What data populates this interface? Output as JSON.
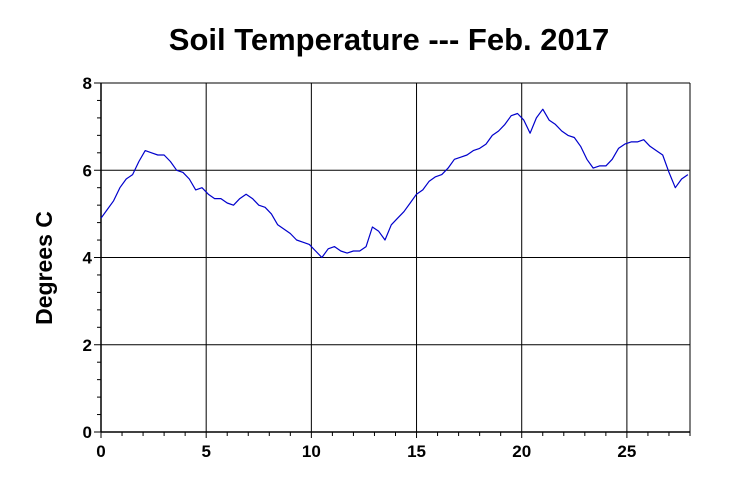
{
  "chart_data": {
    "type": "line",
    "title": "Soil Temperature --- Feb. 2017",
    "xlabel": "",
    "ylabel": "Degrees C",
    "xlim": [
      0,
      28
    ],
    "ylim": [
      0,
      8
    ],
    "x_ticks": [
      "0",
      "5",
      "10",
      "15",
      "20",
      "25"
    ],
    "y_ticks": [
      "0",
      "2",
      "4",
      "6",
      "8"
    ],
    "grid": true,
    "line_color": "#0000cc",
    "series": [
      {
        "x": [
          0,
          0.3,
          0.6,
          0.9,
          1.2,
          1.5,
          1.8,
          2.1,
          2.4,
          2.7,
          3.0,
          3.3,
          3.6,
          3.9,
          4.2,
          4.5,
          4.8,
          5.1,
          5.4,
          5.7,
          6.0,
          6.3,
          6.6,
          6.9,
          7.2,
          7.5,
          7.8,
          8.1,
          8.4,
          8.7,
          9.0,
          9.3,
          9.6,
          9.9,
          10.2,
          10.5,
          10.8,
          11.1,
          11.4,
          11.7,
          12.0,
          12.3,
          12.6,
          12.9,
          13.2,
          13.5,
          13.8,
          14.1,
          14.4,
          14.7,
          15.0,
          15.3,
          15.6,
          15.9,
          16.2,
          16.5,
          16.8,
          17.1,
          17.4,
          17.7,
          18.0,
          18.3,
          18.6,
          18.9,
          19.2,
          19.5,
          19.8,
          20.1,
          20.4,
          20.7,
          21.0,
          21.3,
          21.6,
          21.9,
          22.2,
          22.5,
          22.8,
          23.1,
          23.4,
          23.7,
          24.0,
          24.3,
          24.6,
          24.9,
          25.2,
          25.5,
          25.8,
          26.1,
          26.4,
          26.7,
          27.0,
          27.3,
          27.6,
          27.9
        ],
        "y": [
          4.9,
          5.1,
          5.3,
          5.6,
          5.8,
          5.9,
          6.2,
          6.45,
          6.4,
          6.35,
          6.35,
          6.2,
          6.0,
          5.95,
          5.8,
          5.55,
          5.6,
          5.45,
          5.35,
          5.35,
          5.25,
          5.2,
          5.35,
          5.45,
          5.35,
          5.2,
          5.15,
          5.0,
          4.75,
          4.65,
          4.55,
          4.4,
          4.35,
          4.3,
          4.15,
          4.0,
          4.2,
          4.25,
          4.15,
          4.1,
          4.15,
          4.15,
          4.25,
          4.7,
          4.6,
          4.4,
          4.75,
          4.9,
          5.05,
          5.25,
          5.45,
          5.55,
          5.75,
          5.85,
          5.9,
          6.05,
          6.25,
          6.3,
          6.35,
          6.45,
          6.5,
          6.6,
          6.8,
          6.9,
          7.05,
          7.25,
          7.3,
          7.15,
          6.85,
          7.2,
          7.4,
          7.15,
          7.05,
          6.9,
          6.8,
          6.75,
          6.55,
          6.25,
          6.05,
          6.1,
          6.1,
          6.25,
          6.5,
          6.6,
          6.65,
          6.65,
          6.7,
          6.55,
          6.45,
          6.35,
          5.95,
          5.6,
          5.8,
          5.9
        ]
      }
    ]
  }
}
